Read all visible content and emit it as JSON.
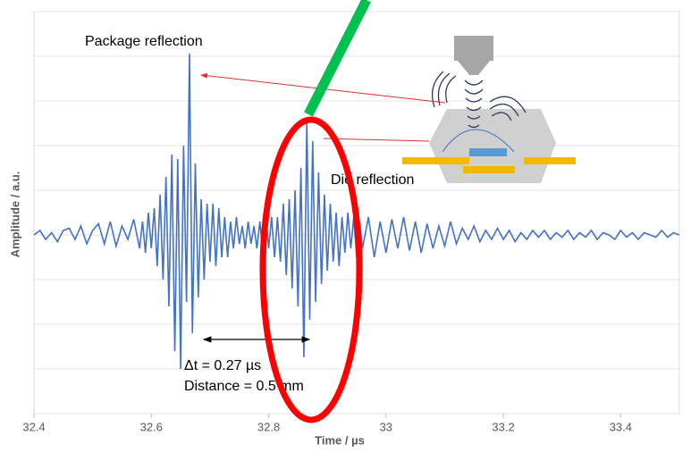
{
  "chart_data": {
    "type": "line",
    "y_label": "Amplitude / a.u.",
    "x_label": "Time / µs",
    "annotations": {
      "package": "Package reflection",
      "die": "Die reflection",
      "delta_t": "Δt = 0.27 µs",
      "distance": "Distance = 0.5 mm"
    },
    "color": "#4472c4",
    "grid": true,
    "xlim": [
      32.4,
      33.5
    ],
    "xticks": [
      32.4,
      32.6,
      32.8,
      33,
      33.2,
      33.4
    ],
    "ylim": [
      -4,
      5
    ],
    "yticks": [
      -4,
      -3,
      -2,
      -1,
      0,
      1,
      2,
      3,
      4,
      5
    ],
    "x": [
      32.4,
      32.41,
      32.42,
      32.43,
      32.44,
      32.45,
      32.46,
      32.47,
      32.48,
      32.49,
      32.5,
      32.51,
      32.52,
      32.53,
      32.54,
      32.55,
      32.56,
      32.57,
      32.58,
      32.585,
      32.59,
      32.595,
      32.6,
      32.605,
      32.61,
      32.615,
      32.62,
      32.625,
      32.63,
      32.635,
      32.64,
      32.645,
      32.65,
      32.655,
      32.66,
      32.665,
      32.67,
      32.675,
      32.68,
      32.685,
      32.69,
      32.695,
      32.7,
      32.705,
      32.71,
      32.715,
      32.72,
      32.725,
      32.73,
      32.735,
      32.74,
      32.745,
      32.75,
      32.755,
      32.76,
      32.765,
      32.77,
      32.775,
      32.78,
      32.785,
      32.79,
      32.795,
      32.8,
      32.805,
      32.81,
      32.815,
      32.82,
      32.825,
      32.83,
      32.835,
      32.84,
      32.845,
      32.85,
      32.855,
      32.86,
      32.865,
      32.87,
      32.875,
      32.88,
      32.885,
      32.89,
      32.895,
      32.9,
      32.905,
      32.91,
      32.915,
      32.92,
      32.925,
      32.93,
      32.935,
      32.94,
      32.945,
      32.95,
      32.955,
      32.96,
      32.97,
      32.98,
      32.99,
      33.0,
      33.01,
      33.02,
      33.03,
      33.04,
      33.05,
      33.06,
      33.07,
      33.08,
      33.09,
      33.1,
      33.11,
      33.12,
      33.13,
      33.14,
      33.15,
      33.16,
      33.17,
      33.18,
      33.19,
      33.2,
      33.21,
      33.22,
      33.23,
      33.24,
      33.25,
      33.26,
      33.27,
      33.28,
      33.29,
      33.3,
      33.31,
      33.32,
      33.33,
      33.34,
      33.35,
      33.36,
      33.37,
      33.38,
      33.39,
      33.4,
      33.41,
      33.42,
      33.43,
      33.44,
      33.45,
      33.46,
      33.47,
      33.48,
      33.49,
      33.5
    ],
    "values": [
      0,
      0.1,
      -0.1,
      0.05,
      -0.15,
      0.1,
      0.15,
      -0.1,
      0.2,
      -0.2,
      0.1,
      0.25,
      -0.2,
      0.3,
      -0.25,
      0.2,
      -0.1,
      0.35,
      -0.3,
      0.3,
      -0.4,
      0.5,
      -0.3,
      0.6,
      -0.7,
      0.9,
      -1.0,
      1.3,
      -1.6,
      1.8,
      -2.6,
      1.7,
      -3.0,
      2.0,
      -1.5,
      4.06,
      -2.2,
      1.6,
      -1.4,
      0.8,
      -1.0,
      0.7,
      -0.6,
      0.7,
      -0.7,
      0.6,
      -0.5,
      0.4,
      -0.5,
      0.3,
      -0.3,
      0.4,
      -0.2,
      0.2,
      -0.3,
      0.3,
      -0.2,
      0.2,
      -0.3,
      0.3,
      -0.4,
      0.5,
      -0.3,
      0.4,
      -0.5,
      0.4,
      -0.6,
      0.7,
      -0.9,
      0.8,
      -1.2,
      1.0,
      -1.6,
      1.5,
      -2.74,
      2.56,
      -1.9,
      2.1,
      -1.5,
      1.4,
      -1.1,
      0.9,
      -0.8,
      0.7,
      -0.6,
      0.5,
      -0.7,
      0.4,
      -0.4,
      0.5,
      -0.3,
      0.4,
      -0.5,
      0.3,
      -0.3,
      0.4,
      -0.5,
      0.3,
      -0.4,
      0.35,
      -0.3,
      0.4,
      -0.35,
      0.3,
      -0.4,
      0.25,
      -0.3,
      0.2,
      -0.25,
      0.3,
      -0.2,
      0.15,
      -0.1,
      0.2,
      -0.15,
      0.1,
      -0.1,
      0.15,
      -0.1,
      0.1,
      -0.15,
      0.05,
      -0.1,
      0.1,
      -0.05,
      0.1,
      -0.1,
      0.05,
      -0.05,
      0.1,
      -0.1,
      0.05,
      -0.05,
      0.1,
      -0.1,
      0.05,
      0,
      -0.1,
      0.1,
      -0.05,
      0.05,
      -0.1,
      0.05,
      0,
      -0.05,
      0.1,
      -0.05,
      0.05,
      0
    ]
  }
}
